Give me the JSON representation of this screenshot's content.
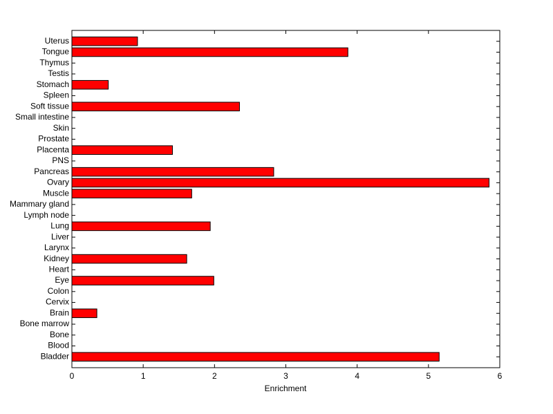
{
  "chart_data": {
    "type": "barh",
    "xlabel": "Enrichment",
    "categories": [
      "Bladder",
      "Blood",
      "Bone",
      "Bone marrow",
      "Brain",
      "Cervix",
      "Colon",
      "Eye",
      "Heart",
      "Kidney",
      "Larynx",
      "Liver",
      "Lung",
      "Lymph node",
      "Mammary gland",
      "Muscle",
      "Ovary",
      "Pancreas",
      "PNS",
      "Placenta",
      "Prostate",
      "Skin",
      "Small intestine",
      "Soft tissue",
      "Spleen",
      "Stomach",
      "Testis",
      "Thymus",
      "Tongue",
      "Uterus"
    ],
    "values": [
      5.15,
      0,
      0,
      0,
      0.35,
      0,
      0,
      1.99,
      0,
      1.61,
      0,
      0,
      1.94,
      0,
      0,
      1.68,
      5.85,
      2.83,
      0,
      1.41,
      0,
      0,
      0,
      2.35,
      0,
      0.51,
      0,
      0,
      3.87,
      0.92
    ],
    "color": "#ff0000",
    "xlim": [
      0,
      6
    ],
    "xticks": [
      0,
      1,
      2,
      3,
      4,
      5,
      6
    ]
  }
}
